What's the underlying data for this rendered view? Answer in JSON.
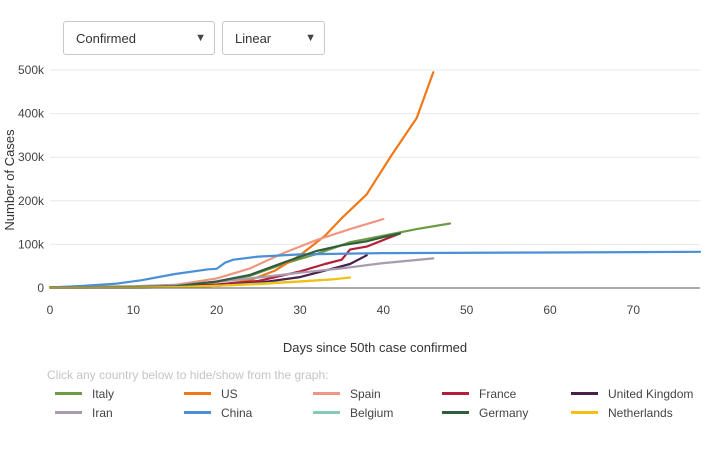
{
  "controls": {
    "metric": {
      "value": "Confirmed"
    },
    "scale": {
      "value": "Linear"
    }
  },
  "hint": "Click any country below to hide/show from the graph:",
  "chart_data": {
    "type": "line",
    "xlabel": "Days since 50th case confirmed",
    "ylabel": "Number of Cases",
    "xlim": [
      0,
      78
    ],
    "ylim": [
      0,
      500000
    ],
    "x_ticks": [
      0,
      10,
      20,
      30,
      40,
      50,
      60,
      70
    ],
    "y_ticks": [
      {
        "value": 0,
        "label": "0"
      },
      {
        "value": 100000,
        "label": "100k"
      },
      {
        "value": 200000,
        "label": "200k"
      },
      {
        "value": 300000,
        "label": "300k"
      },
      {
        "value": 400000,
        "label": "400k"
      },
      {
        "value": 500000,
        "label": "500k"
      }
    ],
    "grid": true,
    "legend_position": "bottom",
    "series": [
      {
        "name": "Italy",
        "color": "#6f9a45",
        "points": [
          [
            0,
            2000
          ],
          [
            10,
            4000
          ],
          [
            15,
            7000
          ],
          [
            20,
            14000
          ],
          [
            24,
            28000
          ],
          [
            28,
            55000
          ],
          [
            32,
            78000
          ],
          [
            36,
            105000
          ],
          [
            40,
            120000
          ],
          [
            44,
            135000
          ],
          [
            48,
            148000
          ]
        ]
      },
      {
        "name": "US",
        "color": "#f07818",
        "points": [
          [
            0,
            1000
          ],
          [
            10,
            2000
          ],
          [
            15,
            3000
          ],
          [
            20,
            6000
          ],
          [
            24,
            18000
          ],
          [
            27,
            40000
          ],
          [
            30,
            75000
          ],
          [
            33,
            120000
          ],
          [
            35,
            160000
          ],
          [
            38,
            215000
          ],
          [
            41,
            305000
          ],
          [
            44,
            390000
          ],
          [
            46,
            495000
          ]
        ]
      },
      {
        "name": "Spain",
        "color": "#ef9682",
        "points": [
          [
            0,
            1000
          ],
          [
            10,
            3000
          ],
          [
            15,
            7000
          ],
          [
            20,
            22000
          ],
          [
            24,
            45000
          ],
          [
            28,
            80000
          ],
          [
            32,
            110000
          ],
          [
            36,
            135000
          ],
          [
            40,
            158000
          ]
        ]
      },
      {
        "name": "France",
        "color": "#b51e37",
        "points": [
          [
            0,
            1000
          ],
          [
            10,
            2000
          ],
          [
            15,
            4000
          ],
          [
            20,
            8000
          ],
          [
            25,
            16000
          ],
          [
            30,
            38000
          ],
          [
            33,
            55000
          ],
          [
            35,
            65000
          ],
          [
            36,
            88000
          ],
          [
            38,
            95000
          ],
          [
            40,
            110000
          ],
          [
            42,
            125000
          ]
        ]
      },
      {
        "name": "United Kingdom",
        "color": "#4a1f4a",
        "points": [
          [
            0,
            500
          ],
          [
            10,
            1000
          ],
          [
            15,
            2000
          ],
          [
            20,
            5000
          ],
          [
            25,
            12000
          ],
          [
            30,
            25000
          ],
          [
            34,
            45000
          ],
          [
            36,
            55000
          ],
          [
            38,
            75000
          ]
        ]
      },
      {
        "name": "Iran",
        "color": "#a89ab0",
        "points": [
          [
            0,
            1000
          ],
          [
            10,
            3000
          ],
          [
            15,
            6000
          ],
          [
            20,
            14000
          ],
          [
            25,
            24000
          ],
          [
            30,
            35000
          ],
          [
            35,
            45000
          ],
          [
            40,
            57000
          ],
          [
            46,
            68000
          ]
        ]
      },
      {
        "name": "China",
        "color": "#4b8fd6",
        "points": [
          [
            0,
            1000
          ],
          [
            4,
            5000
          ],
          [
            8,
            10000
          ],
          [
            11,
            18000
          ],
          [
            15,
            32000
          ],
          [
            19,
            43000
          ],
          [
            20,
            44000
          ],
          [
            21,
            58000
          ],
          [
            22,
            65000
          ],
          [
            25,
            72000
          ],
          [
            30,
            77000
          ],
          [
            40,
            80000
          ],
          [
            60,
            81500
          ],
          [
            78,
            83000
          ]
        ]
      },
      {
        "name": "Belgium",
        "color": "#86cbb8",
        "points": [
          [
            0,
            500
          ],
          [
            10,
            1000
          ],
          [
            15,
            2000
          ],
          [
            20,
            5000
          ],
          [
            25,
            10000
          ],
          [
            30,
            15000
          ],
          [
            34,
            20000
          ]
        ]
      },
      {
        "name": "Germany",
        "color": "#2e5e3c",
        "points": [
          [
            0,
            1000
          ],
          [
            10,
            2000
          ],
          [
            15,
            4000
          ],
          [
            20,
            15000
          ],
          [
            24,
            30000
          ],
          [
            28,
            58000
          ],
          [
            32,
            85000
          ],
          [
            35,
            98000
          ],
          [
            38,
            107000
          ],
          [
            40,
            117000
          ],
          [
            42,
            125000
          ]
        ]
      },
      {
        "name": "Netherlands",
        "color": "#f3c010",
        "points": [
          [
            0,
            500
          ],
          [
            10,
            1000
          ],
          [
            15,
            2000
          ],
          [
            20,
            5000
          ],
          [
            25,
            9000
          ],
          [
            30,
            15000
          ],
          [
            34,
            20000
          ],
          [
            36,
            24000
          ]
        ]
      }
    ]
  }
}
